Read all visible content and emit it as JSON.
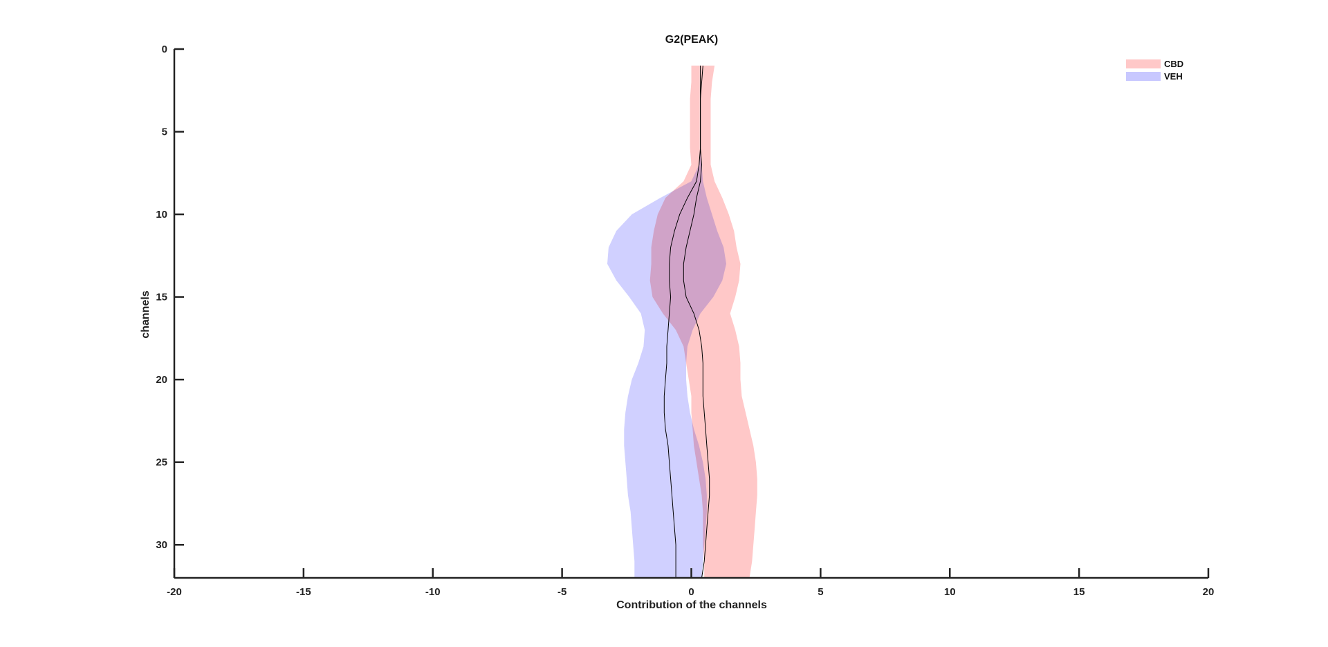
{
  "chart_data": {
    "type": "area",
    "title": "G2(PEAK)",
    "xlabel": "Contribution of the channels",
    "ylabel": "channels",
    "xlim": [
      -20,
      20
    ],
    "ylim": [
      0,
      32
    ],
    "y_reversed": true,
    "x_ticks": [
      -20,
      -15,
      -10,
      -5,
      0,
      5,
      10,
      15,
      20
    ],
    "y_ticks": [
      0,
      5,
      10,
      15,
      20,
      25,
      30
    ],
    "grid": false,
    "legend_placement": "top-right",
    "channels": [
      1,
      2,
      3,
      4,
      5,
      6,
      7,
      8,
      9,
      10,
      11,
      12,
      13,
      14,
      15,
      16,
      17,
      18,
      19,
      20,
      21,
      22,
      23,
      24,
      25,
      26,
      27,
      28,
      29,
      30,
      31,
      32
    ],
    "series": [
      {
        "name": "CBD",
        "color": "#ffc8c8",
        "mean": [
          0.45,
          0.4,
          0.35,
          0.35,
          0.35,
          0.35,
          0.4,
          0.35,
          0.2,
          0.1,
          -0.05,
          -0.2,
          -0.3,
          -0.3,
          -0.2,
          0.1,
          0.3,
          0.4,
          0.45,
          0.45,
          0.45,
          0.5,
          0.55,
          0.6,
          0.65,
          0.7,
          0.7,
          0.65,
          0.6,
          0.55,
          0.5,
          0.4
        ],
        "lower": [
          0.0,
          0.0,
          -0.05,
          -0.05,
          -0.05,
          -0.05,
          0.0,
          -0.3,
          -1.0,
          -1.3,
          -1.45,
          -1.55,
          -1.55,
          -1.6,
          -1.5,
          -1.1,
          -0.6,
          -0.3,
          -0.2,
          -0.1,
          0.0,
          0.0,
          0.05,
          0.1,
          0.2,
          0.3,
          0.4,
          0.45,
          0.45,
          0.45,
          0.5,
          0.5
        ],
        "upper": [
          0.9,
          0.8,
          0.75,
          0.75,
          0.75,
          0.75,
          0.75,
          0.9,
          1.2,
          1.45,
          1.65,
          1.75,
          1.9,
          1.85,
          1.7,
          1.5,
          1.7,
          1.85,
          1.9,
          1.9,
          1.95,
          2.1,
          2.25,
          2.4,
          2.5,
          2.55,
          2.55,
          2.5,
          2.45,
          2.4,
          2.35,
          2.25
        ]
      },
      {
        "name": "VEH",
        "color": "#c8c8ff",
        "mean": [
          0.35,
          0.35,
          0.35,
          0.35,
          0.35,
          0.35,
          0.3,
          0.2,
          -0.15,
          -0.45,
          -0.65,
          -0.8,
          -0.85,
          -0.85,
          -0.8,
          -0.85,
          -0.9,
          -0.95,
          -0.95,
          -1.0,
          -1.05,
          -1.05,
          -1.0,
          -0.9,
          -0.85,
          -0.8,
          -0.75,
          -0.7,
          -0.65,
          -0.6,
          -0.6,
          -0.6
        ],
        "lower": [
          0.35,
          0.35,
          0.35,
          0.35,
          0.35,
          0.35,
          0.3,
          0.0,
          -1.2,
          -2.3,
          -2.9,
          -3.2,
          -3.25,
          -2.9,
          -2.4,
          -1.95,
          -1.8,
          -1.85,
          -2.05,
          -2.3,
          -2.45,
          -2.55,
          -2.6,
          -2.6,
          -2.55,
          -2.5,
          -2.45,
          -2.35,
          -2.3,
          -2.25,
          -2.2,
          -2.2
        ],
        "upper": [
          0.35,
          0.35,
          0.35,
          0.35,
          0.35,
          0.35,
          0.4,
          0.45,
          0.6,
          0.8,
          1.0,
          1.25,
          1.35,
          1.2,
          0.85,
          0.35,
          0.05,
          -0.15,
          -0.2,
          -0.2,
          -0.15,
          -0.05,
          0.1,
          0.3,
          0.45,
          0.55,
          0.6,
          0.6,
          0.55,
          0.5,
          0.45,
          0.4
        ]
      }
    ]
  }
}
